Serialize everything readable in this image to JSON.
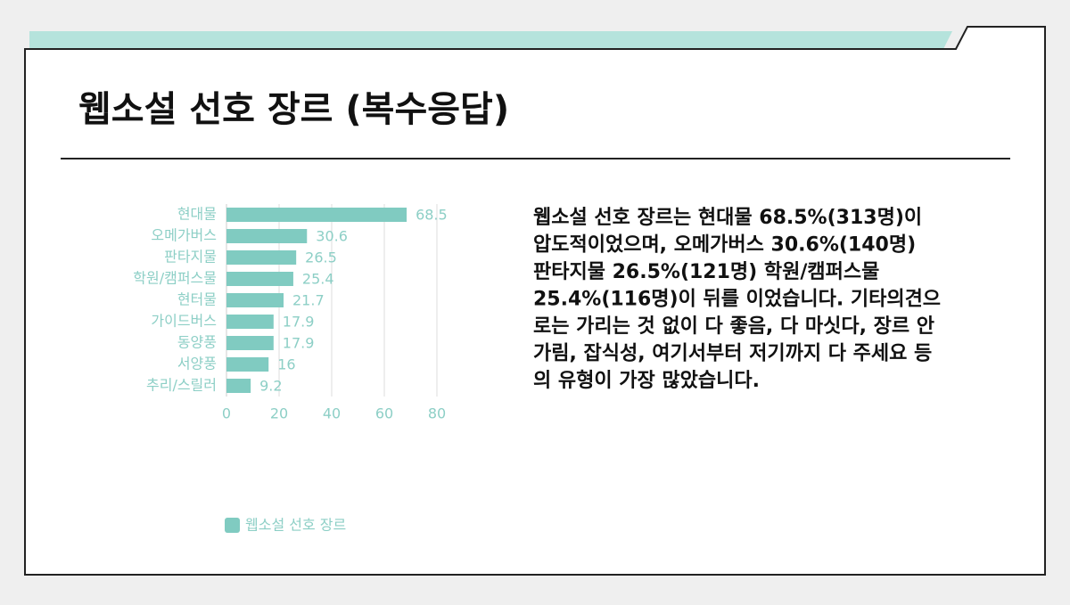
{
  "slide_title": "웹소설 선호 장르 (복수응답)",
  "paragraph": [
    "웹소설 선호 장르는 현대물 68.5%(313명)이",
    "압도적이었으며, 오메가버스 30.6%(140명)",
    "판타지물 26.5%(121명) 학원/캠퍼스물",
    "25.4%(116명)이 뒤를 이었습니다. 기타의견으",
    "로는 가리는 것 없이 다 좋음, 다 마싯다, 장르 안",
    "가림, 잡식성, 여기서부터 저기까지 다 주세요 등",
    "의 유형이 가장 많았습니다."
  ],
  "chart_data": {
    "type": "hbar",
    "categories": [
      "현대물",
      "오메가버스",
      "판타지물",
      "학원/캠퍼스물",
      "현터물",
      "가이드버스",
      "동양풍",
      "서양풍",
      "추리/스릴러"
    ],
    "series": [
      {
        "name": "웹소설 선호 장르",
        "color": "#80cbc1",
        "values": [
          68.5,
          30.6,
          26.5,
          25.4,
          21.7,
          17.9,
          17.9,
          16,
          9.2
        ]
      }
    ],
    "xlim": [
      0,
      80
    ],
    "xticks": [
      0,
      20,
      40,
      60,
      80
    ],
    "grid": true,
    "legend": "bottom"
  }
}
